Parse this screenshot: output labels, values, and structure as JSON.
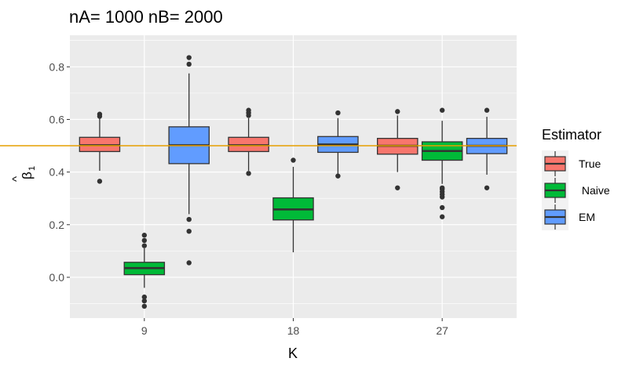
{
  "chart_data": {
    "type": "boxplot",
    "title": "nA= 1000 nB= 2000",
    "xlabel": "K",
    "ylabel": {
      "main": "β",
      "hat": "^",
      "sub": "1"
    },
    "categories": [
      "9",
      "18",
      "27"
    ],
    "ylim": [
      -0.155,
      0.92
    ],
    "yticks": [
      0.0,
      0.2,
      0.4,
      0.6,
      0.8
    ],
    "ytick_labels": [
      "0.0",
      "0.2",
      "0.4",
      "0.6",
      "0.8"
    ],
    "grid": true,
    "reference_line": {
      "y": 0.5,
      "color": "#E69F00"
    },
    "legend": {
      "title": "Estimator",
      "position": "right"
    },
    "series": [
      {
        "name": "True",
        "color": "#F8766D",
        "boxes": [
          {
            "category": "9",
            "min": 0.405,
            "q1": 0.478,
            "median": 0.502,
            "q3": 0.532,
            "max": 0.605,
            "outliers": [
              0.365,
              0.612,
              0.62
            ]
          },
          {
            "category": "18",
            "min": 0.405,
            "q1": 0.478,
            "median": 0.502,
            "q3": 0.532,
            "max": 0.605,
            "outliers": [
              0.395,
              0.615,
              0.625,
              0.635
            ]
          },
          {
            "category": "27",
            "min": 0.4,
            "q1": 0.468,
            "median": 0.5,
            "q3": 0.528,
            "max": 0.615,
            "outliers": [
              0.34,
              0.63
            ]
          }
        ]
      },
      {
        "name": " Naive",
        "color": "#00BA38",
        "boxes": [
          {
            "category": "9",
            "min": -0.04,
            "q1": 0.01,
            "median": 0.035,
            "q3": 0.057,
            "max": 0.11,
            "outliers": [
              -0.11,
              -0.09,
              -0.075,
              0.12,
              0.14,
              0.16
            ]
          },
          {
            "category": "18",
            "min": 0.095,
            "q1": 0.218,
            "median": 0.258,
            "q3": 0.302,
            "max": 0.42,
            "outliers": [
              0.445
            ]
          },
          {
            "category": "27",
            "min": 0.355,
            "q1": 0.445,
            "median": 0.48,
            "q3": 0.515,
            "max": 0.595,
            "outliers": [
              0.23,
              0.265,
              0.305,
              0.315,
              0.325,
              0.335,
              0.34,
              0.635
            ]
          }
        ]
      },
      {
        "name": "EM",
        "color": "#619CFF",
        "boxes": [
          {
            "category": "9",
            "min": 0.24,
            "q1": 0.432,
            "median": 0.502,
            "q3": 0.572,
            "max": 0.775,
            "outliers": [
              0.055,
              0.175,
              0.22,
              0.81,
              0.835
            ]
          },
          {
            "category": "18",
            "min": 0.39,
            "q1": 0.475,
            "median": 0.505,
            "q3": 0.535,
            "max": 0.605,
            "outliers": [
              0.385,
              0.625
            ]
          },
          {
            "category": "27",
            "min": 0.39,
            "q1": 0.47,
            "median": 0.5,
            "q3": 0.528,
            "max": 0.61,
            "outliers": [
              0.34,
              0.635
            ]
          }
        ]
      }
    ]
  }
}
